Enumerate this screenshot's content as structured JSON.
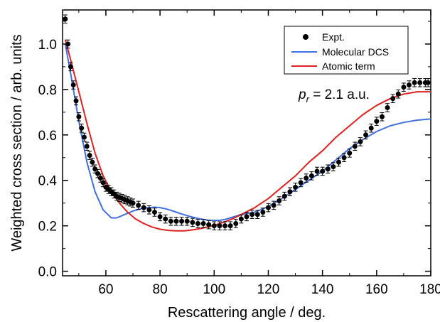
{
  "chart_data": {
    "type": "scatter",
    "xlabel": "Rescattering angle / deg.",
    "ylabel": "Weighted cross section / arb. units",
    "xlim": [
      44,
      180
    ],
    "ylim": [
      -0.02,
      1.15
    ],
    "xticks": [
      60,
      80,
      100,
      120,
      140,
      160,
      180
    ],
    "yticks": [
      0.0,
      0.2,
      0.4,
      0.6,
      0.8,
      1.0
    ],
    "ytick_labels": [
      "0.0",
      "0.2",
      "0.4",
      "0.6",
      "0.8",
      "1.0"
    ],
    "legend_position": "top-right",
    "annotation": {
      "p": "p",
      "sub": "r",
      "rest": " = 2.1 a.u."
    },
    "series": [
      {
        "name": "Expt.",
        "kind": "points_with_errorbars",
        "color": "#000000",
        "error": 0.018,
        "x": [
          45,
          46,
          47,
          48,
          49,
          50,
          51,
          52,
          53,
          54,
          55,
          56,
          57,
          58,
          59,
          60,
          61,
          62,
          63,
          64,
          65,
          66,
          67,
          68,
          69,
          70,
          72,
          74,
          76,
          78,
          80,
          82,
          84,
          86,
          88,
          90,
          92,
          94,
          96,
          98,
          100,
          102,
          104,
          106,
          108,
          110,
          112,
          114,
          116,
          118,
          120,
          122,
          124,
          126,
          128,
          130,
          132,
          134,
          136,
          138,
          140,
          142,
          144,
          146,
          148,
          150,
          152,
          154,
          156,
          158,
          160,
          162,
          164,
          166,
          168,
          170,
          172,
          174,
          176,
          178,
          179
        ],
        "y": [
          1.11,
          1.0,
          0.9,
          0.82,
          0.75,
          0.68,
          0.63,
          0.59,
          0.55,
          0.51,
          0.48,
          0.45,
          0.43,
          0.41,
          0.39,
          0.37,
          0.36,
          0.35,
          0.34,
          0.33,
          0.325,
          0.32,
          0.315,
          0.31,
          0.305,
          0.3,
          0.29,
          0.28,
          0.27,
          0.26,
          0.24,
          0.23,
          0.22,
          0.22,
          0.22,
          0.22,
          0.215,
          0.21,
          0.21,
          0.205,
          0.2,
          0.2,
          0.2,
          0.2,
          0.21,
          0.23,
          0.24,
          0.25,
          0.25,
          0.26,
          0.28,
          0.29,
          0.31,
          0.33,
          0.35,
          0.37,
          0.39,
          0.41,
          0.42,
          0.44,
          0.44,
          0.45,
          0.46,
          0.48,
          0.5,
          0.52,
          0.55,
          0.57,
          0.6,
          0.63,
          0.66,
          0.68,
          0.72,
          0.76,
          0.78,
          0.81,
          0.82,
          0.83,
          0.83,
          0.83,
          0.83
        ]
      },
      {
        "name": "Molecular DCS",
        "kind": "line",
        "color": "#3f6fe0",
        "x": [
          45,
          47,
          50,
          53,
          56,
          59,
          62,
          64,
          66,
          68,
          70,
          72,
          74,
          76,
          78,
          80,
          82,
          84,
          86,
          88,
          90,
          92,
          94,
          96,
          98,
          100,
          102,
          104,
          106,
          110,
          115,
          120,
          125,
          130,
          135,
          140,
          145,
          150,
          155,
          160,
          165,
          170,
          175,
          180
        ],
        "y": [
          1.0,
          0.87,
          0.66,
          0.48,
          0.35,
          0.27,
          0.235,
          0.235,
          0.245,
          0.255,
          0.265,
          0.272,
          0.278,
          0.28,
          0.282,
          0.28,
          0.275,
          0.268,
          0.26,
          0.252,
          0.245,
          0.238,
          0.232,
          0.228,
          0.225,
          0.224,
          0.224,
          0.228,
          0.235,
          0.25,
          0.26,
          0.285,
          0.32,
          0.36,
          0.4,
          0.44,
          0.49,
          0.54,
          0.58,
          0.615,
          0.64,
          0.655,
          0.665,
          0.67
        ]
      },
      {
        "name": "Atomic term",
        "kind": "line",
        "color": "#e02020",
        "x": [
          45,
          47,
          50,
          53,
          56,
          59,
          62,
          65,
          68,
          71,
          74,
          77,
          80,
          83,
          86,
          89,
          92,
          95,
          98,
          101,
          104,
          107,
          110,
          115,
          120,
          125,
          130,
          135,
          140,
          145,
          150,
          155,
          160,
          165,
          170,
          175,
          180
        ],
        "y": [
          1.02,
          0.93,
          0.79,
          0.65,
          0.52,
          0.42,
          0.35,
          0.3,
          0.26,
          0.23,
          0.21,
          0.195,
          0.185,
          0.18,
          0.178,
          0.178,
          0.182,
          0.188,
          0.196,
          0.206,
          0.218,
          0.232,
          0.25,
          0.28,
          0.32,
          0.37,
          0.42,
          0.48,
          0.53,
          0.59,
          0.64,
          0.69,
          0.73,
          0.76,
          0.78,
          0.79,
          0.79
        ]
      }
    ]
  }
}
